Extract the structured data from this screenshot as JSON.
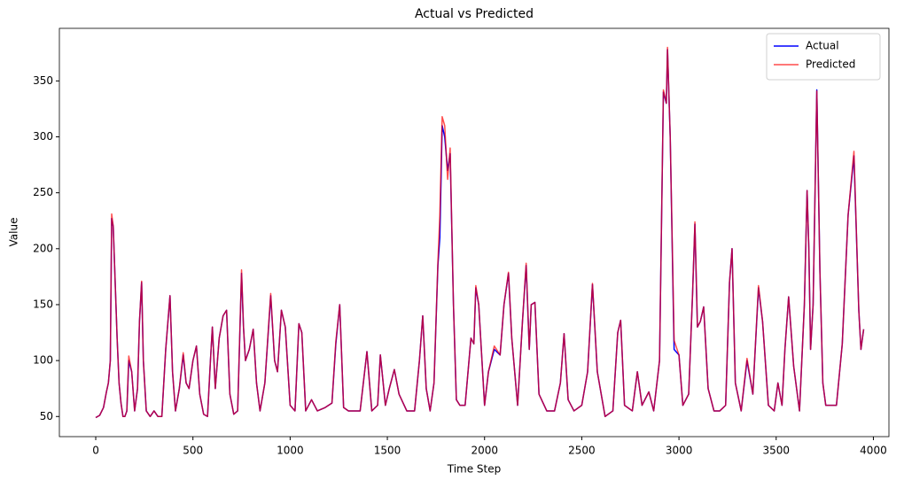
{
  "chart_data": {
    "type": "line",
    "title": "Actual vs Predicted",
    "xlabel": "Time Step",
    "ylabel": "Value",
    "x": [
      0,
      20,
      40,
      55,
      65,
      75,
      82,
      90,
      100,
      110,
      120,
      130,
      140,
      150,
      160,
      170,
      185,
      200,
      215,
      225,
      236,
      245,
      260,
      280,
      300,
      320,
      340,
      360,
      382,
      395,
      410,
      430,
      450,
      465,
      480,
      500,
      518,
      535,
      555,
      575,
      590,
      600,
      615,
      635,
      655,
      673,
      690,
      710,
      730,
      750,
      760,
      770,
      790,
      810,
      827,
      845,
      870,
      900,
      920,
      935,
      955,
      975,
      1000,
      1025,
      1045,
      1060,
      1080,
      1110,
      1140,
      1180,
      1215,
      1235,
      1255,
      1275,
      1300,
      1330,
      1360,
      1395,
      1420,
      1450,
      1464,
      1490,
      1510,
      1536,
      1560,
      1600,
      1640,
      1665,
      1682,
      1700,
      1720,
      1740,
      1760,
      1770,
      1782,
      1795,
      1810,
      1823,
      1840,
      1855,
      1873,
      1900,
      1930,
      1945,
      1955,
      1970,
      2000,
      2020,
      2050,
      2080,
      2100,
      2123,
      2140,
      2170,
      2195,
      2214,
      2230,
      2240,
      2259,
      2280,
      2320,
      2360,
      2390,
      2409,
      2430,
      2460,
      2500,
      2530,
      2555,
      2580,
      2620,
      2660,
      2685,
      2700,
      2720,
      2760,
      2786,
      2810,
      2845,
      2870,
      2900,
      2920,
      2935,
      2941,
      2955,
      2975,
      3000,
      3020,
      3050,
      3070,
      3082,
      3095,
      3110,
      3127,
      3150,
      3180,
      3210,
      3240,
      3260,
      3273,
      3290,
      3320,
      3350,
      3380,
      3409,
      3430,
      3460,
      3490,
      3509,
      3530,
      3545,
      3564,
      3590,
      3620,
      3645,
      3659,
      3668,
      3677,
      3690,
      3709,
      3725,
      3740,
      3755,
      3780,
      3810,
      3840,
      3870,
      3900,
      3925,
      3936,
      3950
    ],
    "series": [
      {
        "name": "Actual",
        "color": "#0000ff",
        "values": [
          49,
          51,
          58,
          72,
          80,
          100,
          227,
          220,
          170,
          120,
          80,
          62,
          50,
          50,
          55,
          100,
          90,
          55,
          75,
          135,
          170,
          100,
          55,
          50,
          55,
          50,
          50,
          110,
          158,
          90,
          55,
          75,
          105,
          80,
          75,
          100,
          113,
          70,
          52,
          50,
          100,
          130,
          75,
          120,
          140,
          145,
          70,
          52,
          55,
          178,
          130,
          100,
          110,
          128,
          80,
          55,
          80,
          158,
          100,
          90,
          145,
          130,
          60,
          55,
          133,
          125,
          55,
          65,
          55,
          58,
          62,
          115,
          150,
          58,
          55,
          55,
          55,
          108,
          55,
          60,
          105,
          60,
          75,
          92,
          70,
          55,
          55,
          100,
          140,
          75,
          55,
          80,
          185,
          210,
          310,
          300,
          270,
          285,
          150,
          65,
          60,
          60,
          120,
          115,
          165,
          150,
          60,
          90,
          110,
          105,
          150,
          178,
          120,
          60,
          135,
          185,
          110,
          150,
          152,
          70,
          55,
          55,
          80,
          124,
          65,
          55,
          60,
          90,
          168,
          90,
          50,
          55,
          125,
          136,
          60,
          55,
          90,
          60,
          72,
          55,
          100,
          340,
          330,
          378,
          300,
          110,
          105,
          60,
          70,
          160,
          222,
          130,
          135,
          148,
          75,
          55,
          55,
          60,
          170,
          200,
          80,
          55,
          100,
          70,
          165,
          135,
          60,
          55,
          80,
          60,
          110,
          157,
          95,
          55,
          150,
          252,
          200,
          110,
          150,
          342,
          180,
          80,
          60,
          60,
          60,
          115,
          230,
          283,
          145,
          110,
          128
        ]
      },
      {
        "name": "Predicted",
        "color": "rgba(255,0,0,0.7)",
        "values": [
          49,
          51,
          58,
          72,
          80,
          100,
          231,
          220,
          170,
          120,
          80,
          62,
          50,
          50,
          55,
          104,
          90,
          55,
          75,
          135,
          171,
          100,
          55,
          50,
          55,
          50,
          50,
          110,
          158,
          90,
          55,
          75,
          107,
          80,
          75,
          100,
          113,
          70,
          52,
          50,
          100,
          130,
          75,
          120,
          140,
          145,
          70,
          52,
          55,
          181,
          130,
          100,
          110,
          128,
          80,
          55,
          80,
          160,
          100,
          90,
          145,
          130,
          60,
          55,
          133,
          125,
          55,
          65,
          55,
          58,
          62,
          117,
          150,
          58,
          55,
          55,
          55,
          108,
          55,
          60,
          105,
          60,
          75,
          92,
          70,
          55,
          55,
          100,
          140,
          75,
          55,
          80,
          188,
          230,
          318,
          310,
          262,
          290,
          150,
          65,
          60,
          60,
          120,
          115,
          167,
          150,
          60,
          90,
          113,
          105,
          150,
          179,
          120,
          60,
          135,
          187,
          110,
          150,
          152,
          70,
          55,
          55,
          80,
          124,
          65,
          55,
          60,
          90,
          169,
          90,
          50,
          55,
          125,
          136,
          60,
          55,
          90,
          60,
          72,
          55,
          100,
          342,
          330,
          380,
          300,
          118,
          105,
          60,
          70,
          160,
          224,
          130,
          135,
          148,
          75,
          55,
          55,
          60,
          170,
          200,
          80,
          55,
          102,
          70,
          167,
          135,
          60,
          55,
          80,
          60,
          110,
          157,
          95,
          55,
          150,
          252,
          200,
          110,
          150,
          341,
          180,
          80,
          60,
          60,
          60,
          115,
          230,
          287,
          145,
          110,
          128
        ]
      }
    ],
    "xlim": [
      -187,
      4080
    ],
    "ylim": [
      32,
      397
    ],
    "xticks": [
      0,
      500,
      1000,
      1500,
      2000,
      2500,
      3000,
      3500,
      4000
    ],
    "yticks": [
      50,
      100,
      150,
      200,
      250,
      300,
      350
    ],
    "legend": "upper right"
  }
}
